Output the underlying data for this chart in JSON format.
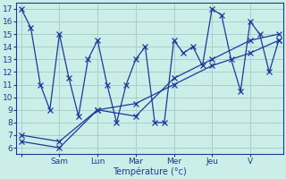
{
  "background_color": "#cceee8",
  "grid_color": "#aacccc",
  "line_color": "#1a3a9a",
  "xlabel": "Température (°c)",
  "xtick_labels": [
    "",
    "Sam",
    "Lun",
    "Mar",
    "Mer",
    "Jeu",
    "V"
  ],
  "xtick_positions": [
    0,
    4,
    8,
    12,
    16,
    20,
    24
  ],
  "ylim": [
    5.5,
    17.5
  ],
  "ytick_positions": [
    6,
    7,
    8,
    9,
    10,
    11,
    12,
    13,
    14,
    15,
    16,
    17
  ],
  "xlim": [
    -0.5,
    27.5
  ],
  "line1_x": [
    0,
    1,
    2,
    3,
    4,
    5,
    6,
    7,
    8,
    9,
    10,
    11,
    12,
    13,
    14,
    15,
    16,
    17,
    18,
    19,
    20,
    21,
    22,
    23,
    24,
    25,
    26,
    27
  ],
  "line1_y": [
    17,
    15.5,
    11,
    9,
    15,
    11.5,
    8.5,
    13,
    14.5,
    11,
    8,
    11,
    13,
    14,
    8,
    8,
    14.5,
    13.5,
    14,
    12.5,
    17,
    16.5,
    13,
    10.5,
    16,
    15,
    12,
    14.5
  ],
  "line2_x": [
    0,
    4,
    8,
    12,
    16,
    20,
    24,
    27
  ],
  "line2_y": [
    7,
    6.5,
    9,
    9.5,
    11,
    12.5,
    13.5,
    14.5
  ],
  "line3_x": [
    0,
    4,
    8,
    12,
    16,
    20,
    24,
    27
  ],
  "line3_y": [
    6.5,
    6,
    9,
    8.5,
    11.5,
    13,
    14.5,
    15
  ]
}
